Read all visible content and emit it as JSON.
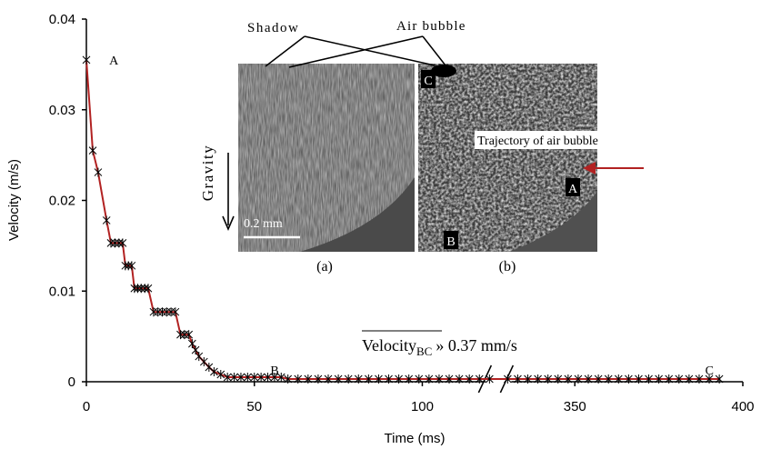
{
  "chart_data": {
    "type": "line",
    "x_label": "Time (ms)",
    "y_label": "Velocity (m/s)",
    "xlim": [
      0,
      400
    ],
    "xbreak": [
      120,
      330
    ],
    "xticks": [
      0,
      50,
      100,
      350,
      400
    ],
    "ylim": [
      0,
      0.04
    ],
    "yticks": [
      0,
      0.01,
      0.02,
      0.03,
      0.04
    ],
    "series": [
      {
        "color": "#b22222",
        "marker_color": "#000000",
        "x": [
          0,
          1.9,
          3.5,
          6,
          7.3,
          8.5,
          9.7,
          10.8,
          11.6,
          12.5,
          13.5,
          14.3,
          15.3,
          16.3,
          17.4,
          18.4,
          20,
          21.3,
          22.6,
          23.9,
          25.2,
          26.5,
          28,
          29.2,
          30.5,
          31.5,
          32.5,
          33.5,
          35,
          36.5,
          38,
          40,
          42,
          44,
          46,
          48,
          50,
          52,
          54,
          56,
          58,
          60,
          63,
          66,
          69,
          72,
          75,
          78,
          81,
          84,
          87,
          90,
          93,
          96,
          99,
          102,
          105,
          108,
          111,
          114,
          117,
          120,
          330,
          333,
          336,
          339,
          342,
          345,
          348,
          351,
          354,
          357,
          360,
          363,
          366,
          369,
          372,
          375,
          378,
          381,
          384,
          387,
          390,
          393
        ],
        "values": [
          0.0355,
          0.0255,
          0.0231,
          0.0178,
          0.0153,
          0.0153,
          0.0153,
          0.0153,
          0.0128,
          0.0128,
          0.0128,
          0.0103,
          0.0103,
          0.0103,
          0.0103,
          0.0103,
          0.0077,
          0.0077,
          0.0077,
          0.0077,
          0.0077,
          0.0077,
          0.0052,
          0.0052,
          0.0052,
          0.0042,
          0.0035,
          0.0028,
          0.0022,
          0.0016,
          0.0011,
          0.0008,
          0.0005,
          0.0005,
          0.0005,
          0.0005,
          0.0005,
          0.0005,
          0.0005,
          0.0005,
          0.0005,
          0.0003,
          0.0003,
          0.0003,
          0.0003,
          0.0003,
          0.0003,
          0.0003,
          0.0003,
          0.0003,
          0.0003,
          0.0003,
          0.0003,
          0.0003,
          0.0003,
          0.0003,
          0.0003,
          0.0003,
          0.0003,
          0.0003,
          0.0003,
          0.0003,
          0.0003,
          0.0003,
          0.0003,
          0.0003,
          0.0003,
          0.0003,
          0.0003,
          0.0003,
          0.0003,
          0.0003,
          0.0003,
          0.0003,
          0.0003,
          0.0003,
          0.0003,
          0.0003,
          0.0003,
          0.0003,
          0.0003,
          0.0003,
          0.0003,
          0.0003
        ]
      }
    ],
    "point_labels": [
      {
        "text": "A",
        "x": 3,
        "y": 0.0355
      },
      {
        "text": "B",
        "x": 51,
        "y": 0.0013
      },
      {
        "text": "C",
        "x": 385,
        "y": 0.0013
      }
    ],
    "annotation": {
      "text": "Velocity",
      "sub": "BC",
      "rest": "» 0.37 mm/s"
    },
    "inset": {
      "shadow": "Shadow",
      "air_bubble": "Air bubble",
      "gravity": "Gravity",
      "scale": "0.2 mm",
      "label_a": "(a)",
      "label_b": "(b)",
      "trajectory": "Trajectory of air bubble",
      "point_a": "A",
      "point_b": "B",
      "point_c": "C"
    }
  }
}
